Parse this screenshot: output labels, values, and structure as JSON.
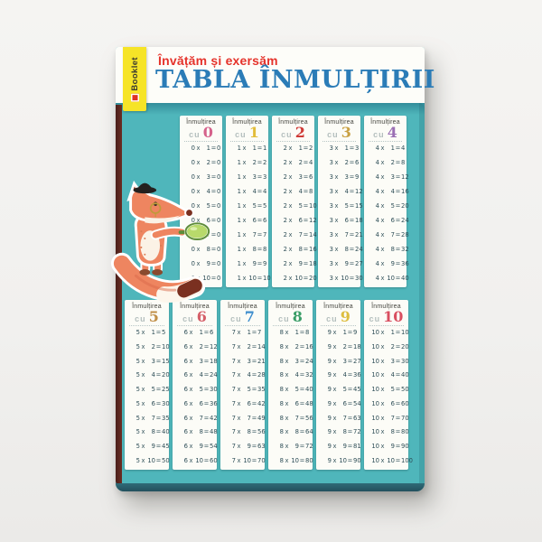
{
  "book": {
    "publisher": "Booklet",
    "subtitle": "Învățăm și exersăm",
    "title": "TABLA ÎNMULȚIRII",
    "colors": {
      "cover_teal": "#4fb6bb",
      "header_white": "#fdfdf9",
      "title_blue": "#2b7cb7",
      "subtitle_red": "#e5332b",
      "spine_yellow": "#f6e427",
      "spine_logo_red": "#e03226",
      "band_teal_dark": "#338d9b",
      "left_edge_maroon": "#5d2a22",
      "bottom_edge_dark": "#23505d",
      "card_background": "#fcfcf7",
      "equation_text": "#2e4e57"
    }
  },
  "cards": {
    "heading": "Înmulțirea",
    "cu_label": "cu",
    "tables": [
      {
        "numeral": "0",
        "color": "#d5628b",
        "rows": [
          "0 x 1 = 0",
          "0 x 2 = 0",
          "0 x 3 = 0",
          "0 x 4 = 0",
          "0 x 5 = 0",
          "0 x 6 = 0",
          "0 x 7 = 0",
          "0 x 8 = 0",
          "0 x 9 = 0",
          "0 x 10 = 0"
        ]
      },
      {
        "numeral": "1",
        "color": "#e2bd3a",
        "rows": [
          "1 x 1 = 1",
          "1 x 2 = 2",
          "1 x 3 = 3",
          "1 x 4 = 4",
          "1 x 5 = 5",
          "1 x 6 = 6",
          "1 x 7 = 7",
          "1 x 8 = 8",
          "1 x 9 = 9",
          "1 x 10 = 10"
        ]
      },
      {
        "numeral": "2",
        "color": "#cf3b36",
        "rows": [
          "2 x 1 = 2",
          "2 x 2 = 4",
          "2 x 3 = 6",
          "2 x 4 = 8",
          "2 x 5 = 10",
          "2 x 6 = 12",
          "2 x 7 = 14",
          "2 x 8 = 16",
          "2 x 9 = 18",
          "2 x 10 = 20"
        ]
      },
      {
        "numeral": "3",
        "color": "#c9a144",
        "rows": [
          "3 x 1 = 3",
          "3 x 2 = 6",
          "3 x 3 = 9",
          "3 x 4 = 12",
          "3 x 5 = 15",
          "3 x 6 = 18",
          "3 x 7 = 21",
          "3 x 8 = 24",
          "3 x 9 = 27",
          "3 x 10 = 30"
        ]
      },
      {
        "numeral": "4",
        "color": "#9b6fb4",
        "rows": [
          "4 x 1 = 4",
          "4 x 2 = 8",
          "4 x 3 = 12",
          "4 x 4 = 16",
          "4 x 5 = 20",
          "4 x 6 = 24",
          "4 x 7 = 28",
          "4 x 8 = 32",
          "4 x 9 = 36",
          "4 x 10 = 40"
        ]
      },
      {
        "numeral": "5",
        "color": "#c08e46",
        "rows": [
          "5 x 1 = 5",
          "5 x 2 = 10",
          "5 x 3 = 15",
          "5 x 4 = 20",
          "5 x 5 = 25",
          "5 x 6 = 30",
          "5 x 7 = 35",
          "5 x 8 = 40",
          "5 x 9 = 45",
          "5 x 10 = 50"
        ]
      },
      {
        "numeral": "6",
        "color": "#d55f68",
        "rows": [
          "6 x 1 = 6",
          "6 x 2 = 12",
          "6 x 3 = 18",
          "6 x 4 = 24",
          "6 x 5 = 30",
          "6 x 6 = 36",
          "6 x 7 = 42",
          "6 x 8 = 48",
          "6 x 9 = 54",
          "6 x 10 = 60"
        ]
      },
      {
        "numeral": "7",
        "color": "#3f8ecd",
        "rows": [
          "7 x 1 = 7",
          "7 x 2 = 14",
          "7 x 3 = 21",
          "7 x 4 = 28",
          "7 x 5 = 35",
          "7 x 6 = 42",
          "7 x 7 = 49",
          "7 x 8 = 56",
          "7 x 9 = 63",
          "7 x 10 = 70"
        ]
      },
      {
        "numeral": "8",
        "color": "#3b9e68",
        "rows": [
          "8 x 1 = 8",
          "8 x 2 = 16",
          "8 x 3 = 24",
          "8 x 4 = 32",
          "8 x 5 = 40",
          "8 x 6 = 48",
          "8 x 7 = 56",
          "8 x 8 = 64",
          "8 x 9 = 72",
          "8 x 10 = 80"
        ]
      },
      {
        "numeral": "9",
        "color": "#ddbe3f",
        "rows": [
          "9 x 1 = 9",
          "9 x 2 = 18",
          "9 x 3 = 27",
          "9 x 4 = 36",
          "9 x 5 = 45",
          "9 x 6 = 54",
          "9 x 7 = 63",
          "9 x 8 = 72",
          "9 x 9 = 81",
          "9 x 10 = 90"
        ]
      },
      {
        "numeral": "10",
        "color": "#d94f60",
        "rows": [
          "10 x 1 = 10",
          "10 x 2 = 20",
          "10 x 3 = 30",
          "10 x 4 = 40",
          "10 x 5 = 50",
          "10 x 6 = 60",
          "10 x 7 = 70",
          "10 x 8 = 80",
          "10 x 9 = 90",
          "10 x 10 = 100"
        ]
      }
    ]
  }
}
